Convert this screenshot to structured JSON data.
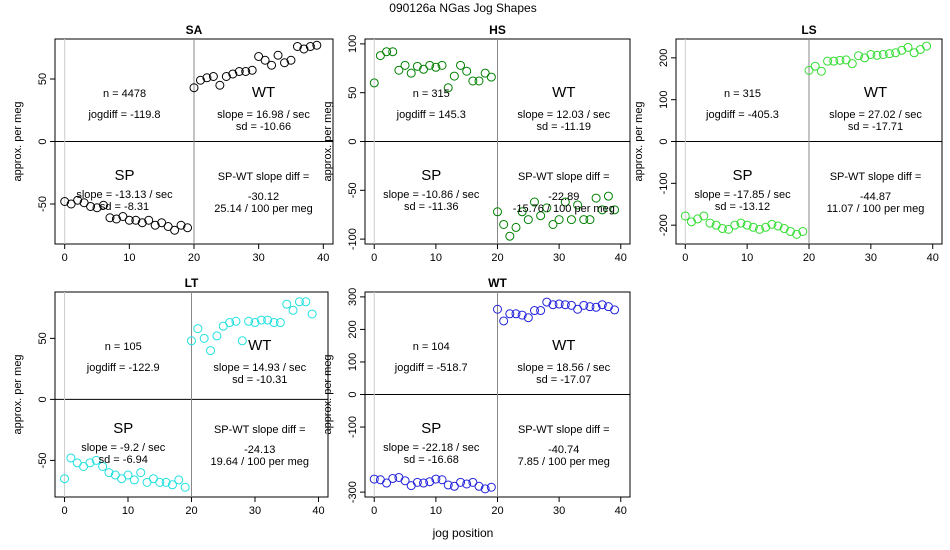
{
  "figure": {
    "title": "090126a    NGas Jog Shapes",
    "xlabel": "jog position"
  },
  "chart_data": [
    {
      "type": "scatter",
      "panel": "SA",
      "color": "#000000",
      "ylabel": "approx. per meg",
      "xlim": [
        -1.5,
        41.5
      ],
      "ylim": [
        -82,
        82
      ],
      "xticks": [
        0,
        10,
        20,
        30,
        40
      ],
      "yticks": [
        -50,
        0,
        50
      ],
      "x": [
        0,
        1,
        2,
        3,
        4,
        5,
        6,
        7,
        8,
        9,
        10,
        11,
        12,
        13,
        14,
        15,
        16,
        17,
        18,
        19,
        20,
        21,
        22,
        23,
        24,
        25,
        26,
        27,
        28,
        29,
        30,
        31,
        32,
        33,
        34,
        35,
        36,
        37,
        38,
        39
      ],
      "y": [
        -48,
        -50,
        -47,
        -49,
        -52,
        -53,
        -51,
        -61,
        -62,
        -60,
        -63,
        -63,
        -65,
        -63,
        -67,
        -65,
        -68,
        -71,
        -67,
        -69,
        43,
        49,
        51,
        52,
        45,
        52,
        54,
        56,
        56,
        57,
        68,
        65,
        61,
        69,
        63,
        65,
        76,
        74,
        76,
        77
      ],
      "text": {
        "n": "n = 4478",
        "jogdiff": "jogdiff = -119.8",
        "wt": "WT",
        "wt_slope": "slope = 16.98 / sec",
        "wt_sd": "sd = -10.66",
        "sp": "SP",
        "sp_slope": "slope = -13.13 / sec",
        "sp_sd": "sd = -8.31",
        "diff_label": "SP-WT slope diff =",
        "diff": "-30.12",
        "diff_per": "25.14 / 100 per meg"
      }
    },
    {
      "type": "scatter",
      "panel": "HS",
      "color": "#008000",
      "ylabel": "approx. per meg",
      "xlim": [
        -1.5,
        41.5
      ],
      "ylim": [
        -105,
        105
      ],
      "xticks": [
        0,
        10,
        20,
        30,
        40
      ],
      "yticks": [
        -100,
        -50,
        0,
        50,
        100
      ],
      "x": [
        0,
        1,
        2,
        3,
        4,
        5,
        6,
        7,
        8,
        9,
        10,
        11,
        12,
        13,
        14,
        15,
        16,
        17,
        18,
        19,
        20,
        21,
        22,
        23,
        24,
        25,
        26,
        27,
        28,
        29,
        30,
        31,
        32,
        33,
        34,
        35,
        36,
        37,
        38,
        39
      ],
      "y": [
        60,
        88,
        92,
        92,
        73,
        78,
        70,
        77,
        74,
        78,
        76,
        78,
        55,
        67,
        78,
        72,
        62,
        62,
        70,
        66,
        -72,
        -85,
        -97,
        -88,
        -72,
        -80,
        -62,
        -76,
        -68,
        -85,
        -80,
        -62,
        -80,
        -65,
        -80,
        -80,
        -58,
        -70,
        -56,
        -70
      ],
      "text": {
        "n": "n = 315",
        "jogdiff": "jogdiff = 145.3",
        "wt": "WT",
        "wt_slope": "slope = 12.03 / sec",
        "wt_sd": "sd = -11.19",
        "sp": "SP",
        "sp_slope": "slope = -10.86 / sec",
        "sp_sd": "sd = -11.36",
        "diff_label": "SP-WT slope diff =",
        "diff": "-22.89",
        "diff_per": "-15.76 / 100 per meg"
      }
    },
    {
      "type": "scatter",
      "panel": "LS",
      "color": "#33dd33",
      "ylabel": "approx. per meg",
      "xlim": [
        -1.5,
        41.5
      ],
      "ylim": [
        -245,
        245
      ],
      "xticks": [
        0,
        10,
        20,
        30,
        40
      ],
      "yticks": [
        -200,
        -100,
        0,
        100,
        200
      ],
      "x": [
        0,
        1,
        2,
        3,
        4,
        5,
        6,
        7,
        8,
        9,
        10,
        11,
        12,
        13,
        14,
        15,
        16,
        17,
        18,
        19,
        20,
        21,
        22,
        23,
        24,
        25,
        26,
        27,
        28,
        29,
        30,
        31,
        32,
        33,
        34,
        35,
        36,
        37,
        38,
        39
      ],
      "y": [
        -178,
        -192,
        -185,
        -178,
        -195,
        -200,
        -208,
        -210,
        -200,
        -195,
        -200,
        -205,
        -210,
        -205,
        -198,
        -202,
        -208,
        -215,
        -222,
        -215,
        170,
        180,
        168,
        192,
        192,
        194,
        195,
        186,
        205,
        200,
        208,
        206,
        208,
        210,
        212,
        218,
        225,
        212,
        220,
        228
      ],
      "text": {
        "n": "n = 315",
        "jogdiff": "jogdiff = -405.3",
        "wt": "WT",
        "wt_slope": "slope = 27.02 / sec",
        "wt_sd": "sd = -17.71",
        "sp": "SP",
        "sp_slope": "slope = -17.85 / sec",
        "sp_sd": "sd = -13.12",
        "diff_label": "SP-WT slope diff =",
        "diff": "-44.87",
        "diff_per": "11.07 / 100 per meg"
      }
    },
    {
      "type": "scatter",
      "panel": "LT",
      "color": "#22e0e0",
      "ylabel": "approx. per meg",
      "xlim": [
        -1.5,
        41.5
      ],
      "ylim": [
        -80,
        88
      ],
      "xticks": [
        0,
        10,
        20,
        30,
        40
      ],
      "yticks": [
        -50,
        0,
        50
      ],
      "x": [
        0,
        1,
        2,
        3,
        4,
        5,
        6,
        7,
        8,
        9,
        10,
        11,
        12,
        13,
        14,
        15,
        16,
        17,
        18,
        19,
        20,
        21,
        22,
        23,
        24,
        25,
        26,
        27,
        28,
        29,
        30,
        31,
        32,
        33,
        34,
        35,
        36,
        37,
        38,
        39
      ],
      "y": [
        -65,
        -48,
        -52,
        -55,
        -52,
        -50,
        -55,
        -60,
        -62,
        -65,
        -62,
        -66,
        -60,
        -68,
        -65,
        -68,
        -68,
        -70,
        -66,
        -72,
        48,
        58,
        50,
        40,
        52,
        60,
        63,
        64,
        48,
        64,
        63,
        65,
        65,
        63,
        63,
        78,
        73,
        80,
        80,
        70
      ],
      "text": {
        "n": "n = 105",
        "jogdiff": "jogdiff = -122.9",
        "wt": "WT",
        "wt_slope": "slope = 14.93 / sec",
        "wt_sd": "sd = -10.31",
        "sp": "SP",
        "sp_slope": "slope = -9.2 / sec",
        "sp_sd": "sd = -6.94",
        "diff_label": "SP-WT slope diff =",
        "diff": "-24.13",
        "diff_per": "19.64 / 100 per meg"
      }
    },
    {
      "type": "scatter",
      "panel": "WT",
      "color": "#2222dd",
      "ylabel": "approx. per meg",
      "xlim": [
        -1.5,
        41.5
      ],
      "ylim": [
        -315,
        315
      ],
      "xticks": [
        0,
        10,
        20,
        30,
        40
      ],
      "yticks": [
        -300,
        -100,
        0,
        100,
        200,
        300
      ],
      "x": [
        0,
        1,
        2,
        3,
        4,
        5,
        6,
        7,
        8,
        9,
        10,
        11,
        12,
        13,
        14,
        15,
        16,
        17,
        18,
        19,
        20,
        21,
        22,
        23,
        24,
        25,
        26,
        27,
        28,
        29,
        30,
        31,
        32,
        33,
        34,
        35,
        36,
        37,
        38,
        39
      ],
      "y": [
        -260,
        -262,
        -272,
        -258,
        -255,
        -265,
        -280,
        -270,
        -272,
        -268,
        -260,
        -262,
        -278,
        -282,
        -270,
        -275,
        -270,
        -282,
        -290,
        -285,
        262,
        226,
        248,
        248,
        244,
        236,
        258,
        258,
        284,
        276,
        278,
        276,
        274,
        262,
        274,
        270,
        268,
        276,
        270,
        260
      ],
      "text": {
        "n": "n = 104",
        "jogdiff": "jogdiff = -518.7",
        "wt": "WT",
        "wt_slope": "slope = 18.56 / sec",
        "wt_sd": "sd = -17.07",
        "sp": "SP",
        "sp_slope": "slope = -22.18 / sec",
        "sp_sd": "sd = -16.68",
        "diff_label": "SP-WT slope diff =",
        "diff": "-40.74",
        "diff_per": "7.85 / 100 per meg"
      }
    }
  ]
}
